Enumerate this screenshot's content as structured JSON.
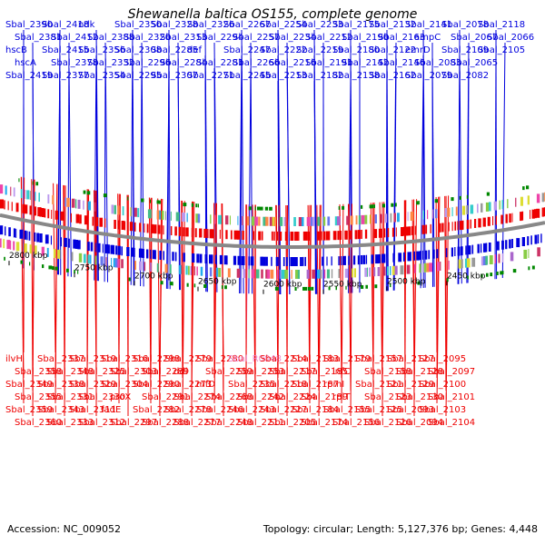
{
  "title": "Shewanella baltica OS155, complete genome",
  "footer": {
    "accession": "Accession: NC_009052",
    "stats": "Topology: circular; Length: 5,127,376 bp; Genes: 4,448"
  },
  "colors": {
    "forward": "#0000dd",
    "reverse": "#ee0000",
    "rna": "#ee88cc",
    "backbone": "#888888",
    "marker": "#008800"
  },
  "scale_ticks": [
    {
      "label": "2800 kbp"
    },
    {
      "label": "2750 kbp"
    },
    {
      "label": "2700 kbp"
    },
    {
      "label": "2650 kbp"
    },
    {
      "label": "2600 kbp"
    },
    {
      "label": "2550 kbp"
    },
    {
      "label": "2500 kbp"
    },
    {
      "label": "2450 kbp"
    }
  ],
  "top_labels": [
    {
      "text": "Sbal_2390"
    },
    {
      "text": "Sbal_2381"
    },
    {
      "text": "hscB"
    },
    {
      "text": "hscA"
    },
    {
      "text": "Sbal_2419"
    },
    {
      "text": "Sbal_2418"
    },
    {
      "text": "Sbal_2412"
    },
    {
      "text": "Sbal_2415"
    },
    {
      "text": "Sbal_2378"
    },
    {
      "text": "Sbal_2377"
    },
    {
      "text": "ndk"
    },
    {
      "text": "Sbal_2388"
    },
    {
      "text": "Sbal_2356"
    },
    {
      "text": "Sbal_2332"
    },
    {
      "text": "Sbal_2354"
    },
    {
      "text": "Sbal_2350"
    },
    {
      "text": "Sbal_2320"
    },
    {
      "text": "Sbal_2308"
    },
    {
      "text": "Sbal_2296"
    },
    {
      "text": "Sbal_2295"
    },
    {
      "text": "Sbal_2328"
    },
    {
      "text": "Sbal_2313"
    },
    {
      "text": "Sbal_2285"
    },
    {
      "text": "Sbal_2284"
    },
    {
      "text": "Sbal_2307"
    },
    {
      "text": "Sbal_2326"
    },
    {
      "text": "Sbal_2294"
    },
    {
      "text": "def"
    },
    {
      "text": "Sbal_2281"
    },
    {
      "text": "Sbal_2271"
    },
    {
      "text": "Sbal_2267"
    },
    {
      "text": "Sbal_2257"
    },
    {
      "text": "Sbal_2247"
    },
    {
      "text": "Sbal_2266"
    },
    {
      "text": "Sbal_2245"
    },
    {
      "text": "Sbal_2254"
    },
    {
      "text": "Sbal_2234"
    },
    {
      "text": "Sbal_2222"
    },
    {
      "text": "Sbal_2216"
    },
    {
      "text": "Sbal_2213"
    },
    {
      "text": "Sbal_2233"
    },
    {
      "text": "Sbal_2212"
    },
    {
      "text": "Sbal_2219"
    },
    {
      "text": "Sbal_2191"
    },
    {
      "text": "Sbal_2182"
    },
    {
      "text": "Sbal_2175"
    },
    {
      "text": "Sbal_2190"
    },
    {
      "text": "Sbal_2180"
    },
    {
      "text": "Sbal_2142"
    },
    {
      "text": "Sbal_2138"
    },
    {
      "text": "Sbal_2132"
    },
    {
      "text": "Sbal_2163"
    },
    {
      "text": "Sbal_2122"
    },
    {
      "text": "Sbal_2146"
    },
    {
      "text": "Sbal_2162"
    },
    {
      "text": "Sbal_2141"
    },
    {
      "text": "ampC"
    },
    {
      "text": "emrD"
    },
    {
      "text": "Sbal_2083"
    },
    {
      "text": "Sbal_2079"
    },
    {
      "text": "Sbal_2078"
    },
    {
      "text": "Sbal_2067"
    },
    {
      "text": "Sbal_2109"
    },
    {
      "text": "Sbal_2065"
    },
    {
      "text": "Sbal_2082"
    },
    {
      "text": "Sbal_2118"
    },
    {
      "text": "Sbal_2066"
    },
    {
      "text": "Sbal_2105"
    }
  ],
  "bottom_labels": [
    {
      "text": "ilvH"
    },
    {
      "text": "Sbal_2358"
    },
    {
      "text": "Sbal_2349"
    },
    {
      "text": "Sbal_2355"
    },
    {
      "text": "Sbal_2359"
    },
    {
      "text": "Sbal_2360"
    },
    {
      "text": "Sbal_2337"
    },
    {
      "text": "Sbal_2348"
    },
    {
      "text": "Sbal_2338"
    },
    {
      "text": "Sbal_2331"
    },
    {
      "text": "Sbal_2343"
    },
    {
      "text": "Sbal_2333"
    },
    {
      "text": "Sbal_2319"
    },
    {
      "text": "Sbal_2325"
    },
    {
      "text": "Sbal_2329"
    },
    {
      "text": "Sbal_2330"
    },
    {
      "text": "Sbal_2311"
    },
    {
      "text": "Sbal_2312"
    },
    {
      "text": "Sbal_2316"
    },
    {
      "text": "Sbal_2303"
    },
    {
      "text": "Sbal_2304"
    },
    {
      "text": "proX"
    },
    {
      "text": "fadE"
    },
    {
      "text": "Sbal_2297"
    },
    {
      "text": "Sbal_2298"
    },
    {
      "text": "Sbal_2289"
    },
    {
      "text": "Sbal_2290"
    },
    {
      "text": "Sbal_2291"
    },
    {
      "text": "Sbal_2282"
    },
    {
      "text": "Sbal_2288"
    },
    {
      "text": "Sbal_2279"
    },
    {
      "text": "ddl"
    },
    {
      "text": "Sbal_2273"
    },
    {
      "text": "Sbal_2274"
    },
    {
      "text": "Sbal_2278"
    },
    {
      "text": "Sbal_2277"
    },
    {
      "text": "Sbal_2280"
    },
    {
      "text": "Sbal_2259"
    },
    {
      "text": "mfD"
    },
    {
      "text": "Sbal_2268"
    },
    {
      "text": "Sbal_2246"
    },
    {
      "text": "Sbal_2248"
    },
    {
      "text": "Sbal_R0048",
      "rna": true
    },
    {
      "text": "Sbal_2253"
    },
    {
      "text": "Sbal_2235"
    },
    {
      "text": "Sbal_2242"
    },
    {
      "text": "Sbal_2243"
    },
    {
      "text": "Sbal_2211"
    },
    {
      "text": "Sbal_2214"
    },
    {
      "text": "Sbal_2217"
    },
    {
      "text": "Sbal_2218"
    },
    {
      "text": "Sbal_2224"
    },
    {
      "text": "Sbal_2227"
    },
    {
      "text": "Sbal_2205"
    },
    {
      "text": "Sbal_2183"
    },
    {
      "text": "Sbal_2185"
    },
    {
      "text": "Sbal_2187"
    },
    {
      "text": "Sbal_2189"
    },
    {
      "text": "Sbal_2184"
    },
    {
      "text": "Sbal_2174"
    },
    {
      "text": "Sbal_2179"
    },
    {
      "text": "infC"
    },
    {
      "text": "rpmI"
    },
    {
      "text": "rplT"
    },
    {
      "text": "Sbal_2155"
    },
    {
      "text": "Sbal_2156"
    },
    {
      "text": "Sbal_2157"
    },
    {
      "text": "Sbal_2158"
    },
    {
      "text": "Sbal_2121"
    },
    {
      "text": "Sbal_2123"
    },
    {
      "text": "Sbal_2125"
    },
    {
      "text": "Sbal_2126"
    },
    {
      "text": "Sbal_2127"
    },
    {
      "text": "Sbal_2128"
    },
    {
      "text": "Sbal_2129"
    },
    {
      "text": "Sbal_2130"
    },
    {
      "text": "Sbal_2093"
    },
    {
      "text": "Sbal_2094"
    },
    {
      "text": "Sbal_2095"
    },
    {
      "text": "Sbal_2097"
    },
    {
      "text": "Sbal_2100"
    },
    {
      "text": "Sbal_2101"
    },
    {
      "text": "Sbal_2103"
    },
    {
      "text": "Sbal_2104"
    }
  ]
}
